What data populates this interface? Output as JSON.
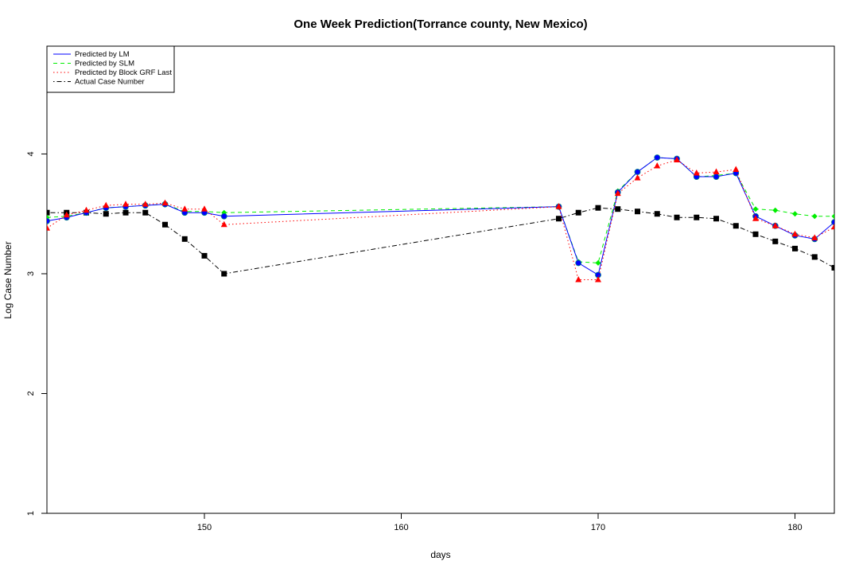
{
  "chart_data": {
    "type": "line",
    "title": "One Week Prediction(Torrance county, New Mexico)",
    "xlabel": "days",
    "ylabel": "Log Case Number",
    "xlim": [
      142,
      182
    ],
    "ylim": [
      1,
      4.9
    ],
    "xticks": [
      150,
      160,
      170,
      180
    ],
    "yticks": [
      1,
      2,
      3,
      4
    ],
    "legend_position": "top-left",
    "x": [
      142,
      143,
      144,
      145,
      146,
      147,
      148,
      149,
      150,
      151,
      168,
      169,
      170,
      171,
      172,
      173,
      174,
      175,
      176,
      177,
      178,
      179,
      180,
      181,
      182
    ],
    "series": [
      {
        "name": "Actual Case Number",
        "color": "#000000",
        "dash": "dotdash",
        "marker": "square",
        "values": [
          3.51,
          3.51,
          3.51,
          3.5,
          3.51,
          3.51,
          3.41,
          3.29,
          3.15,
          3.0,
          3.46,
          3.51,
          3.55,
          3.54,
          3.52,
          3.5,
          3.47,
          3.47,
          3.46,
          3.4,
          3.33,
          3.27,
          3.21,
          3.14,
          3.05
        ]
      },
      {
        "name": "Predicted by SLM",
        "color": "#00ee00",
        "dash": "dashed",
        "marker": "diamond",
        "values": [
          3.47,
          3.48,
          3.51,
          3.55,
          3.56,
          3.57,
          3.58,
          3.52,
          3.52,
          3.51,
          3.56,
          3.1,
          3.09,
          3.69,
          3.85,
          3.97,
          3.96,
          3.81,
          3.82,
          3.84,
          3.54,
          3.53,
          3.5,
          3.48,
          3.48
        ]
      },
      {
        "name": "Predicted by LM",
        "color": "#0000ff",
        "dash": "solid",
        "marker": "circle",
        "values": [
          3.44,
          3.47,
          3.51,
          3.55,
          3.56,
          3.57,
          3.58,
          3.51,
          3.51,
          3.48,
          3.56,
          3.09,
          2.99,
          3.68,
          3.85,
          3.97,
          3.96,
          3.81,
          3.81,
          3.84,
          3.48,
          3.4,
          3.32,
          3.29,
          3.43
        ]
      },
      {
        "name": "Predicted by Block GRF Last",
        "color": "#ff0000",
        "dash": "dotted",
        "marker": "triangle",
        "values": [
          3.38,
          3.49,
          3.53,
          3.57,
          3.58,
          3.58,
          3.59,
          3.54,
          3.54,
          3.41,
          3.56,
          2.95,
          2.95,
          3.67,
          3.8,
          3.9,
          3.95,
          3.84,
          3.85,
          3.87,
          3.46,
          3.4,
          3.33,
          3.3,
          3.39
        ]
      }
    ],
    "legend_order": [
      "Predicted by LM",
      "Predicted by SLM",
      "Predicted by Block GRF Last",
      "Actual Case Number"
    ]
  }
}
